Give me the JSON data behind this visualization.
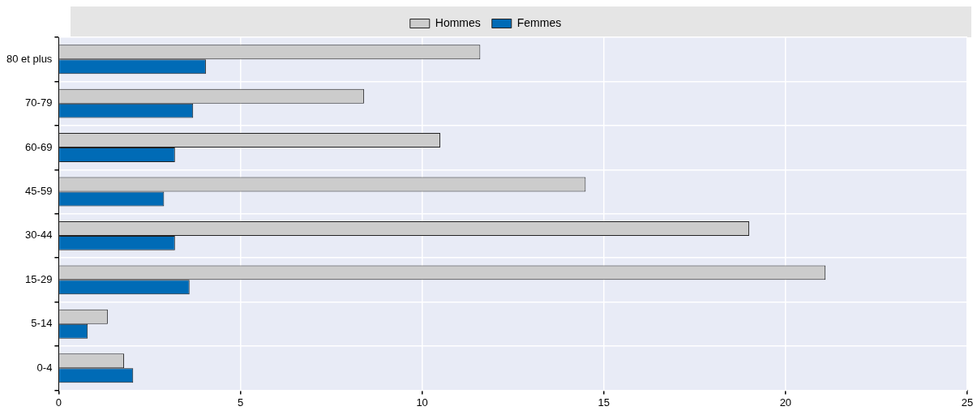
{
  "chart_data": {
    "type": "bar",
    "orientation": "horizontal",
    "legend": "top",
    "grid": true,
    "categories": [
      "80 et plus",
      "70-79",
      "60-69",
      "45-59",
      "30-44",
      "15-29",
      "5-14",
      "0-4"
    ],
    "series": [
      {
        "name": "Hommes",
        "color": "#cccccc",
        "values": [
          11.6,
          8.4,
          10.5,
          14.5,
          19.0,
          21.1,
          1.35,
          1.8
        ]
      },
      {
        "name": "Femmes",
        "color": "#006bb6",
        "values": [
          4.05,
          3.7,
          3.2,
          2.9,
          3.2,
          3.6,
          0.8,
          2.05
        ]
      }
    ],
    "xlim": [
      0,
      25
    ],
    "xticks": [
      0,
      5,
      10,
      15,
      20,
      25
    ]
  }
}
